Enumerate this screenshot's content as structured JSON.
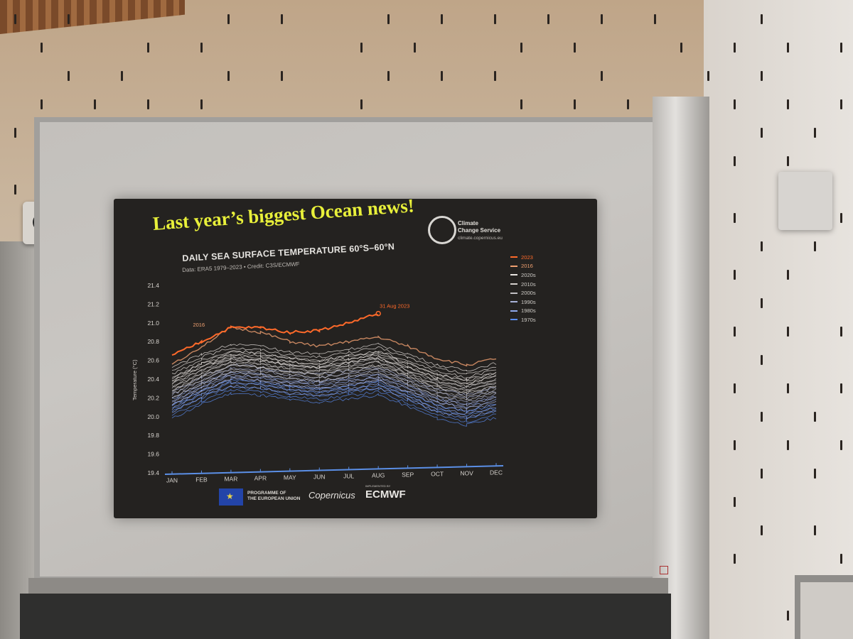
{
  "slide": {
    "headline": "Last year’s biggest Ocean news!",
    "chart_title": "DAILY SEA SURFACE TEMPERATURE 60°S–60°N",
    "credit": "Data: ERA5 1979–2023 • Credit: C3S/ECMWF",
    "c3s_name_line1": "Climate",
    "c3s_name_line2": "Change Service",
    "c3s_url": "climate.copernicus.eu",
    "footer_eu_line1": "PROGRAMME OF",
    "footer_eu_line2": "THE EUROPEAN UNION",
    "footer_copernicus": "Copernicus",
    "footer_ecmwf_sub": "IMPLEMENTED BY",
    "footer_ecmwf": "ECMWF"
  },
  "colors": {
    "y2023": "#ff6a2a",
    "y2016": "#f0a070",
    "d2020s": "#e8e4e0",
    "d2010s": "#d4d0cc",
    "d2000s": "#c2c0c4",
    "d1990s": "#a9b2d8",
    "d1980s": "#8ea8ec",
    "d1970s": "#5a8cf0",
    "axis": "#5b8fe6"
  },
  "chart_data": {
    "type": "line",
    "title": "DAILY SEA SURFACE TEMPERATURE 60°S–60°N",
    "ylabel": "Temperature (°C)",
    "xlabel": "",
    "x": [
      "JAN",
      "FEB",
      "MAR",
      "APR",
      "MAY",
      "JUN",
      "JUL",
      "AUG",
      "SEP",
      "OCT",
      "NOV",
      "DEC"
    ],
    "yticks": [
      "19.4",
      "19.6",
      "19.8",
      "20.0",
      "20.2",
      "20.4",
      "20.6",
      "20.8",
      "21.0",
      "21.2",
      "21.4"
    ],
    "ylim": [
      19.4,
      21.4
    ],
    "annotations": [
      {
        "text": "31 Aug 2023",
        "x": "AUG",
        "y": 21.1
      },
      {
        "text": "2016",
        "x": "FEB",
        "y": 20.9
      }
    ],
    "series": [
      {
        "name": "2023",
        "values": [
          20.65,
          20.8,
          20.95,
          20.95,
          20.9,
          20.92,
          21.0,
          21.1,
          null,
          null,
          null,
          null
        ]
      },
      {
        "name": "2016",
        "values": [
          20.55,
          20.75,
          20.95,
          20.9,
          20.8,
          20.75,
          20.8,
          20.85,
          20.75,
          20.62,
          20.55,
          20.62
        ]
      },
      {
        "name": "2020s",
        "values": [
          20.45,
          20.6,
          20.7,
          20.68,
          20.62,
          20.6,
          20.65,
          20.7,
          20.6,
          20.48,
          20.42,
          20.5
        ]
      },
      {
        "name": "2010s",
        "values": [
          20.35,
          20.5,
          20.62,
          20.6,
          20.55,
          20.52,
          20.58,
          20.62,
          20.5,
          20.38,
          20.32,
          20.4
        ]
      },
      {
        "name": "2000s",
        "values": [
          20.28,
          20.42,
          20.55,
          20.52,
          20.48,
          20.45,
          20.5,
          20.55,
          20.42,
          20.3,
          20.25,
          20.32
        ]
      },
      {
        "name": "1990s",
        "values": [
          20.2,
          20.35,
          20.48,
          20.46,
          20.4,
          20.38,
          20.42,
          20.46,
          20.34,
          20.22,
          20.16,
          20.24
        ]
      },
      {
        "name": "1980s",
        "values": [
          20.12,
          20.28,
          20.4,
          20.38,
          20.32,
          20.3,
          20.34,
          20.38,
          20.26,
          20.12,
          20.06,
          20.14
        ]
      },
      {
        "name": "1970s",
        "values": [
          20.05,
          20.2,
          20.32,
          20.3,
          20.25,
          20.22,
          20.26,
          20.3,
          20.18,
          20.05,
          19.98,
          20.06
        ]
      }
    ]
  }
}
